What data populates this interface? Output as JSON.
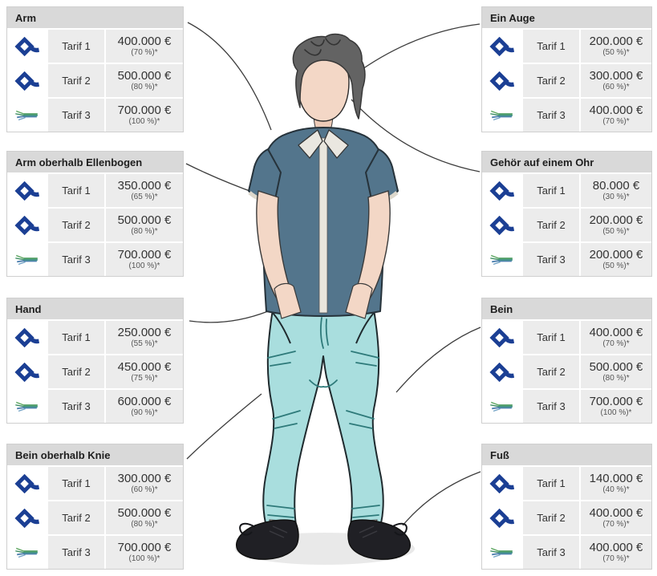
{
  "colors": {
    "header_bg": "#d9d9d9",
    "cell_bg": "#ececec",
    "logo_blue": "#1b3f94",
    "logo_green": "#4e9e68",
    "connector_line": "#3c3c3c",
    "shirt": "#53758c",
    "jeans": "#a9dede",
    "shoes": "#202025",
    "skin": "#f3d7c6"
  },
  "icons": {
    "tarif_1_2": "diamond-logo-icon",
    "tarif_3": "stripes-logo-icon"
  },
  "tables": [
    {
      "id": "arm",
      "side": "left",
      "title": "Arm",
      "rows": [
        {
          "icon": "diamond-logo-icon",
          "label": "Tarif 1",
          "amount": "400.000 €",
          "percent": "(70 %)*"
        },
        {
          "icon": "diamond-logo-icon",
          "label": "Tarif 2",
          "amount": "500.000 €",
          "percent": "(80 %)*"
        },
        {
          "icon": "stripes-logo-icon",
          "label": "Tarif 3",
          "amount": "700.000 €",
          "percent": "(100 %)*"
        }
      ]
    },
    {
      "id": "arm-oberhalb-ellenbogen",
      "side": "left",
      "title": "Arm oberhalb Ellenbogen",
      "rows": [
        {
          "icon": "diamond-logo-icon",
          "label": "Tarif 1",
          "amount": "350.000 €",
          "percent": "(65 %)*"
        },
        {
          "icon": "diamond-logo-icon",
          "label": "Tarif 2",
          "amount": "500.000 €",
          "percent": "(80 %)*"
        },
        {
          "icon": "stripes-logo-icon",
          "label": "Tarif 3",
          "amount": "700.000 €",
          "percent": "(100 %)*"
        }
      ]
    },
    {
      "id": "hand",
      "side": "left",
      "title": "Hand",
      "rows": [
        {
          "icon": "diamond-logo-icon",
          "label": "Tarif 1",
          "amount": "250.000 €",
          "percent": "(55 %)*"
        },
        {
          "icon": "diamond-logo-icon",
          "label": "Tarif 2",
          "amount": "450.000 €",
          "percent": "(75 %)*"
        },
        {
          "icon": "stripes-logo-icon",
          "label": "Tarif 3",
          "amount": "600.000 €",
          "percent": "(90 %)*"
        }
      ]
    },
    {
      "id": "bein-oberhalb-knie",
      "side": "left",
      "title": "Bein oberhalb Knie",
      "rows": [
        {
          "icon": "diamond-logo-icon",
          "label": "Tarif 1",
          "amount": "300.000 €",
          "percent": "(60 %)*"
        },
        {
          "icon": "diamond-logo-icon",
          "label": "Tarif 2",
          "amount": "500.000 €",
          "percent": "(80 %)*"
        },
        {
          "icon": "stripes-logo-icon",
          "label": "Tarif 3",
          "amount": "700.000 €",
          "percent": "(100 %)*"
        }
      ]
    },
    {
      "id": "ein-auge",
      "side": "right",
      "title": "Ein Auge",
      "rows": [
        {
          "icon": "diamond-logo-icon",
          "label": "Tarif 1",
          "amount": "200.000 €",
          "percent": "(50 %)*"
        },
        {
          "icon": "diamond-logo-icon",
          "label": "Tarif 2",
          "amount": "300.000 €",
          "percent": "(60 %)*"
        },
        {
          "icon": "stripes-logo-icon",
          "label": "Tarif 3",
          "amount": "400.000 €",
          "percent": "(70 %)*"
        }
      ]
    },
    {
      "id": "gehoer-auf-einem-ohr",
      "side": "right",
      "title": "Gehör auf einem Ohr",
      "rows": [
        {
          "icon": "diamond-logo-icon",
          "label": "Tarif 1",
          "amount": "80.000 €",
          "percent": "(30 %)*"
        },
        {
          "icon": "diamond-logo-icon",
          "label": "Tarif 2",
          "amount": "200.000 €",
          "percent": "(50 %)*"
        },
        {
          "icon": "stripes-logo-icon",
          "label": "Tarif 3",
          "amount": "200.000 €",
          "percent": "(50 %)*"
        }
      ]
    },
    {
      "id": "bein",
      "side": "right",
      "title": "Bein",
      "rows": [
        {
          "icon": "diamond-logo-icon",
          "label": "Tarif 1",
          "amount": "400.000 €",
          "percent": "(70 %)*"
        },
        {
          "icon": "diamond-logo-icon",
          "label": "Tarif 2",
          "amount": "500.000 €",
          "percent": "(80 %)*"
        },
        {
          "icon": "stripes-logo-icon",
          "label": "Tarif 3",
          "amount": "700.000 €",
          "percent": "(100 %)*"
        }
      ]
    },
    {
      "id": "fuss",
      "side": "right",
      "title": "Fuß",
      "rows": [
        {
          "icon": "diamond-logo-icon",
          "label": "Tarif 1",
          "amount": "140.000 €",
          "percent": "(40 %)*"
        },
        {
          "icon": "diamond-logo-icon",
          "label": "Tarif 2",
          "amount": "400.000 €",
          "percent": "(70 %)*"
        },
        {
          "icon": "stripes-logo-icon",
          "label": "Tarif 3",
          "amount": "400.000 €",
          "percent": "(70 %)*"
        }
      ]
    }
  ],
  "connectors": [
    "arm-to-shoulder",
    "arm-oberhalb-ellenbogen-to-upper-arm",
    "hand-to-hand",
    "bein-oberhalb-knie-to-thigh",
    "ein-auge-to-eye",
    "gehoer-to-ear",
    "bein-to-leg",
    "fuss-to-foot"
  ]
}
